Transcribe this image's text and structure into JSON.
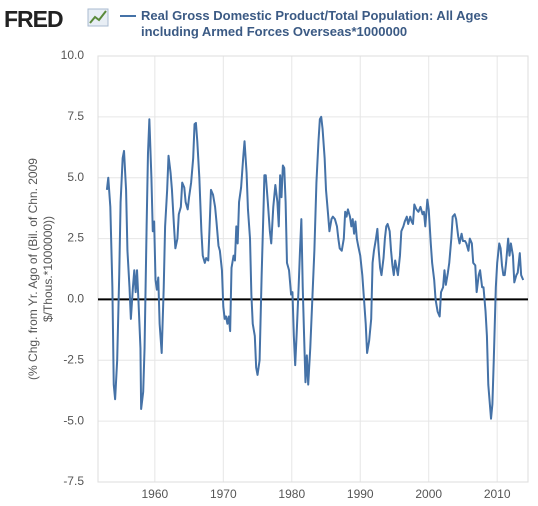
{
  "logo": "FRED",
  "chart_data": {
    "type": "line",
    "y_label": [
      "(% Chg. from Yr. Ago of (Bil. of Chn. 2009",
      "$/Thous.*1000000))"
    ],
    "series": [
      {
        "name": "Real Gross Domestic Product/Total Population: All Ages including Armed Forces Overseas*1000000",
        "color": "#4572a7",
        "x": [
          1953.0,
          1953.2,
          1953.5,
          1953.8,
          1954.0,
          1954.2,
          1954.5,
          1954.8,
          1955.0,
          1955.3,
          1955.5,
          1955.8,
          1956.0,
          1956.3,
          1956.5,
          1956.8,
          1957.0,
          1957.2,
          1957.4,
          1957.6,
          1957.9,
          1958.0,
          1958.3,
          1958.5,
          1958.8,
          1959.0,
          1959.2,
          1959.5,
          1959.7,
          1959.9,
          1960.1,
          1960.3,
          1960.5,
          1960.7,
          1961.0,
          1961.3,
          1961.5,
          1961.8,
          1962.0,
          1962.3,
          1962.5,
          1962.8,
          1963.0,
          1963.3,
          1963.5,
          1963.8,
          1964.0,
          1964.3,
          1964.5,
          1964.8,
          1965.0,
          1965.3,
          1965.6,
          1965.8,
          1966.0,
          1966.2,
          1966.5,
          1966.8,
          1967.0,
          1967.3,
          1967.5,
          1967.8,
          1968.0,
          1968.2,
          1968.5,
          1968.8,
          1969.0,
          1969.3,
          1969.5,
          1969.8,
          1970.0,
          1970.2,
          1970.4,
          1970.6,
          1970.8,
          1971.0,
          1971.2,
          1971.5,
          1971.7,
          1971.9,
          1972.1,
          1972.3,
          1972.6,
          1972.9,
          1973.1,
          1973.4,
          1973.6,
          1973.9,
          1974.1,
          1974.3,
          1974.6,
          1974.8,
          1975.0,
          1975.3,
          1975.6,
          1975.9,
          1976.0,
          1976.2,
          1976.5,
          1976.8,
          1977.0,
          1977.3,
          1977.6,
          1977.9,
          1978.1,
          1978.3,
          1978.5,
          1978.7,
          1978.9,
          1979.1,
          1979.3,
          1979.6,
          1979.9,
          1980.1,
          1980.3,
          1980.5,
          1980.7,
          1981.0,
          1981.2,
          1981.4,
          1981.6,
          1981.8,
          1982.0,
          1982.2,
          1982.4,
          1982.7,
          1983.0,
          1983.3,
          1983.6,
          1983.9,
          1984.1,
          1984.3,
          1984.5,
          1984.8,
          1985.0,
          1985.3,
          1985.5,
          1985.8,
          1986.0,
          1986.3,
          1986.6,
          1986.8,
          1987.0,
          1987.3,
          1987.6,
          1987.8,
          1988.0,
          1988.2,
          1988.5,
          1988.7,
          1988.9,
          1989.1,
          1989.3,
          1989.5,
          1989.7,
          1990.0,
          1990.3,
          1990.5,
          1990.8,
          1991.0,
          1991.3,
          1991.6,
          1991.8,
          1992.0,
          1992.3,
          1992.5,
          1992.7,
          1992.9,
          1993.1,
          1993.4,
          1993.6,
          1993.8,
          1994.0,
          1994.3,
          1994.5,
          1994.7,
          1994.9,
          1995.1,
          1995.3,
          1995.5,
          1995.8,
          1996.0,
          1996.3,
          1996.5,
          1996.8,
          1997.0,
          1997.3,
          1997.5,
          1997.7,
          1997.9,
          1998.2,
          1998.5,
          1998.8,
          1999.1,
          1999.3,
          1999.5,
          1999.8,
          2000.0,
          2000.3,
          2000.5,
          2000.8,
          2001.0,
          2001.3,
          2001.6,
          2001.8,
          2002.1,
          2002.3,
          2002.5,
          2002.8,
          2003.0,
          2003.3,
          2003.5,
          2003.8,
          2004.0,
          2004.3,
          2004.5,
          2004.8,
          2005.0,
          2005.3,
          2005.5,
          2005.8,
          2006.0,
          2006.3,
          2006.5,
          2006.8,
          2007.0,
          2007.3,
          2007.5,
          2007.8,
          2008.0,
          2008.3,
          2008.5,
          2008.7,
          2008.9,
          2009.1,
          2009.3,
          2009.5,
          2009.8,
          2010.0,
          2010.3,
          2010.5,
          2010.7,
          2010.9,
          2011.1,
          2011.3,
          2011.6,
          2011.8,
          2012.0,
          2012.3,
          2012.5,
          2012.8,
          2013.0,
          2013.3,
          2013.5,
          2013.8
        ],
        "values": [
          4.5,
          5.0,
          3.8,
          0.5,
          -3.5,
          -4.1,
          -2.5,
          1.0,
          4.0,
          5.8,
          6.1,
          4.5,
          2.0,
          0.5,
          -0.8,
          0.5,
          1.2,
          0.3,
          1.2,
          0.0,
          -2.0,
          -4.5,
          -3.8,
          -2.0,
          3.0,
          6.0,
          7.4,
          5.0,
          2.8,
          3.2,
          0.8,
          0.4,
          0.9,
          -1.0,
          -2.2,
          0.5,
          3.0,
          4.5,
          5.9,
          5.2,
          4.5,
          3.0,
          2.1,
          2.5,
          3.5,
          3.8,
          4.8,
          4.6,
          4.0,
          3.7,
          4.2,
          4.8,
          5.8,
          7.2,
          7.25,
          6.5,
          5.0,
          2.8,
          1.8,
          1.5,
          1.7,
          1.6,
          3.0,
          4.5,
          4.3,
          3.8,
          3.2,
          2.2,
          2.0,
          1.2,
          -0.3,
          -0.8,
          -0.7,
          -1.0,
          -0.7,
          -1.3,
          1.3,
          1.8,
          1.6,
          3.0,
          2.3,
          4.0,
          4.6,
          5.8,
          6.5,
          5.2,
          3.7,
          2.5,
          0.2,
          -1.0,
          -1.5,
          -2.8,
          -3.1,
          -2.5,
          1.0,
          4.0,
          5.1,
          5.1,
          4.0,
          2.8,
          2.3,
          3.8,
          4.7,
          4.0,
          3.0,
          5.1,
          4.2,
          5.5,
          5.4,
          4.0,
          1.5,
          1.2,
          0.2,
          0.3,
          -1.5,
          -2.7,
          -1.5,
          0.5,
          2.0,
          3.3,
          0.5,
          -1.5,
          -3.4,
          -2.3,
          -3.5,
          -2.0,
          0.0,
          2.0,
          4.8,
          6.5,
          7.4,
          7.5,
          7.0,
          5.8,
          4.5,
          3.5,
          2.8,
          3.3,
          3.4,
          3.3,
          3.0,
          2.5,
          2.1,
          2.0,
          2.5,
          3.6,
          3.4,
          3.7,
          3.4,
          3.0,
          3.3,
          2.7,
          3.2,
          2.5,
          2.2,
          1.8,
          1.0,
          0.2,
          -1.0,
          -2.2,
          -1.7,
          -0.8,
          1.5,
          2.0,
          2.5,
          2.9,
          2.0,
          1.3,
          1.0,
          1.7,
          2.5,
          3.0,
          3.1,
          2.8,
          2.0,
          1.4,
          1.0,
          1.6,
          1.3,
          1.0,
          1.8,
          2.8,
          3.0,
          3.2,
          3.4,
          3.1,
          3.4,
          3.2,
          3.1,
          3.9,
          3.7,
          3.6,
          3.8,
          3.5,
          3.6,
          3.0,
          4.1,
          3.7,
          2.3,
          1.5,
          0.8,
          0.0,
          -0.5,
          -0.7,
          0.3,
          0.5,
          1.2,
          0.6,
          1.1,
          1.5,
          2.5,
          3.4,
          3.5,
          3.3,
          2.6,
          2.3,
          2.7,
          2.4,
          2.4,
          2.3,
          2.0,
          2.5,
          2.3,
          1.5,
          1.4,
          0.3,
          1.0,
          1.2,
          0.5,
          0.5,
          -0.5,
          -1.5,
          -3.5,
          -4.2,
          -4.9,
          -4.3,
          -2.5,
          0.5,
          1.5,
          2.3,
          2.1,
          1.4,
          1.0,
          1.0,
          1.5,
          2.5,
          1.8,
          2.3,
          1.8,
          0.7,
          1.0,
          1.1,
          1.9,
          1.0,
          0.8
        ]
      }
    ],
    "xlim": [
      1951.7,
      2014.5
    ],
    "xticks": [
      1960,
      1970,
      1980,
      1990,
      2000,
      2010
    ],
    "ylim": [
      -7.5,
      10
    ],
    "yticks": [
      {
        "value": 10,
        "label": "10.0"
      },
      7.5,
      {
        "value": 5,
        "label": "5.0"
      },
      2.5,
      {
        "value": 0,
        "label": "0.0"
      },
      -2.5,
      {
        "value": -5,
        "label": "-5.0"
      },
      -7.5
    ],
    "grid": true,
    "zero_line": true
  }
}
